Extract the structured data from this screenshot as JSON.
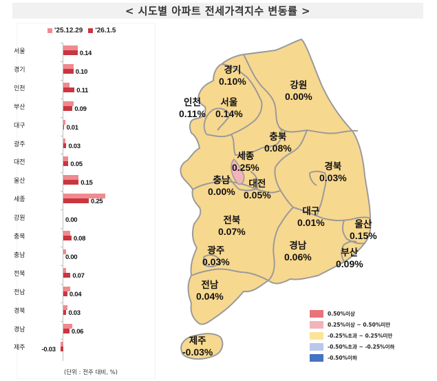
{
  "title": "< 시도별 아파트 전세가격지수 변동률 >",
  "legend": {
    "prev": {
      "label": "'25.12.29",
      "color": "#f08a90"
    },
    "curr": {
      "label": "'26.1.5",
      "color": "#c9363f"
    }
  },
  "unit_note": "(단위 : 전주 대비, %)",
  "chart_data": {
    "type": "bar",
    "orientation": "horizontal",
    "title": "시도별 아파트 전세가격지수 변동률",
    "xlabel": "(단위 : 전주 대비, %)",
    "ylabel": "",
    "categories": [
      "서울",
      "경기",
      "인천",
      "부산",
      "대구",
      "광주",
      "대전",
      "울산",
      "세종",
      "강원",
      "충북",
      "충남",
      "전북",
      "전남",
      "경북",
      "경남",
      "제주"
    ],
    "series": [
      {
        "name": "'25.12.29",
        "color": "#f08a90",
        "values": [
          0.14,
          0.1,
          0.06,
          0.1,
          0.02,
          0.02,
          0.05,
          0.15,
          0.41,
          0.0,
          0.07,
          0.03,
          0.03,
          0.07,
          0.04,
          0.09,
          -0.03
        ]
      },
      {
        "name": "'26.1.5",
        "color": "#c9363f",
        "values": [
          0.14,
          0.1,
          0.11,
          0.09,
          0.01,
          0.03,
          0.05,
          0.15,
          0.25,
          0.0,
          0.08,
          0.0,
          0.07,
          0.04,
          0.03,
          0.06,
          -0.03
        ]
      }
    ],
    "data_labels": [
      "0.14",
      "0.10",
      "0.11",
      "0.09",
      "0.01",
      "0.03",
      "0.05",
      "0.15",
      "0.25",
      "0.00",
      "0.08",
      "0.00",
      "0.07",
      "0.04",
      "0.03",
      "0.06",
      "-0.03"
    ],
    "grid": false,
    "legend_position": "top"
  },
  "rows": [
    {
      "name": "서울",
      "prev": 0.14,
      "curr": 0.14,
      "label": "0.14"
    },
    {
      "name": "경기",
      "prev": 0.1,
      "curr": 0.1,
      "label": "0.10"
    },
    {
      "name": "인천",
      "prev": 0.06,
      "curr": 0.11,
      "label": "0.11"
    },
    {
      "name": "부산",
      "prev": 0.1,
      "curr": 0.09,
      "label": "0.09"
    },
    {
      "name": "대구",
      "prev": 0.02,
      "curr": 0.01,
      "label": "0.01"
    },
    {
      "name": "광주",
      "prev": 0.02,
      "curr": 0.03,
      "label": "0.03"
    },
    {
      "name": "대전",
      "prev": 0.05,
      "curr": 0.05,
      "label": "0.05"
    },
    {
      "name": "울산",
      "prev": 0.15,
      "curr": 0.15,
      "label": "0.15"
    },
    {
      "name": "세종",
      "prev": 0.41,
      "curr": 0.25,
      "label": "0.25"
    },
    {
      "name": "강원",
      "prev": 0.0,
      "curr": 0.0,
      "label": "0.00"
    },
    {
      "name": "충북",
      "prev": 0.07,
      "curr": 0.08,
      "label": "0.08"
    },
    {
      "name": "충남",
      "prev": 0.03,
      "curr": 0.0,
      "label": "0.00"
    },
    {
      "name": "전북",
      "prev": 0.03,
      "curr": 0.07,
      "label": "0.07"
    },
    {
      "name": "전남",
      "prev": 0.07,
      "curr": 0.04,
      "label": "0.04"
    },
    {
      "name": "경북",
      "prev": 0.04,
      "curr": 0.03,
      "label": "0.03"
    },
    {
      "name": "경남",
      "prev": 0.09,
      "curr": 0.06,
      "label": "0.06"
    },
    {
      "name": "제주",
      "prev": -0.03,
      "curr": -0.03,
      "label": "-0.03"
    }
  ],
  "map": {
    "regions": [
      {
        "name": "경기",
        "value": "0.10%"
      },
      {
        "name": "강원",
        "value": "0.00%"
      },
      {
        "name": "인천",
        "value": "0.11%"
      },
      {
        "name": "서울",
        "value": "0.14%"
      },
      {
        "name": "충북",
        "value": "0.08%"
      },
      {
        "name": "세종",
        "value": "0.25%"
      },
      {
        "name": "충남",
        "value": "0.00%"
      },
      {
        "name": "대전",
        "value": "0.05%"
      },
      {
        "name": "경북",
        "value": "0.03%"
      },
      {
        "name": "전북",
        "value": "0.07%"
      },
      {
        "name": "대구",
        "value": "0.01%"
      },
      {
        "name": "울산",
        "value": "0.15%"
      },
      {
        "name": "광주",
        "value": "0.03%"
      },
      {
        "name": "경남",
        "value": "0.06%"
      },
      {
        "name": "부산",
        "value": "0.09%"
      },
      {
        "name": "전남",
        "value": "0.04%"
      },
      {
        "name": "제주",
        "value": "-0.03%"
      }
    ],
    "colors": {
      "fill": "#f7d88f",
      "border": "#9a9a9a",
      "sejong": "#f2b3bb"
    },
    "legend": [
      {
        "label": "0.50%이상",
        "color": "#e8737a"
      },
      {
        "label": "0.25%이상 ~ 0.50%미만",
        "color": "#f2b3bb"
      },
      {
        "label": "-0.25%초과 ~ 0.25%미만",
        "color": "#fbe49a"
      },
      {
        "label": "-0.50%초과 ~ -0.25%이하",
        "color": "#b8c9ea"
      },
      {
        "label": "-0.50%이하",
        "color": "#4472c4"
      }
    ]
  }
}
